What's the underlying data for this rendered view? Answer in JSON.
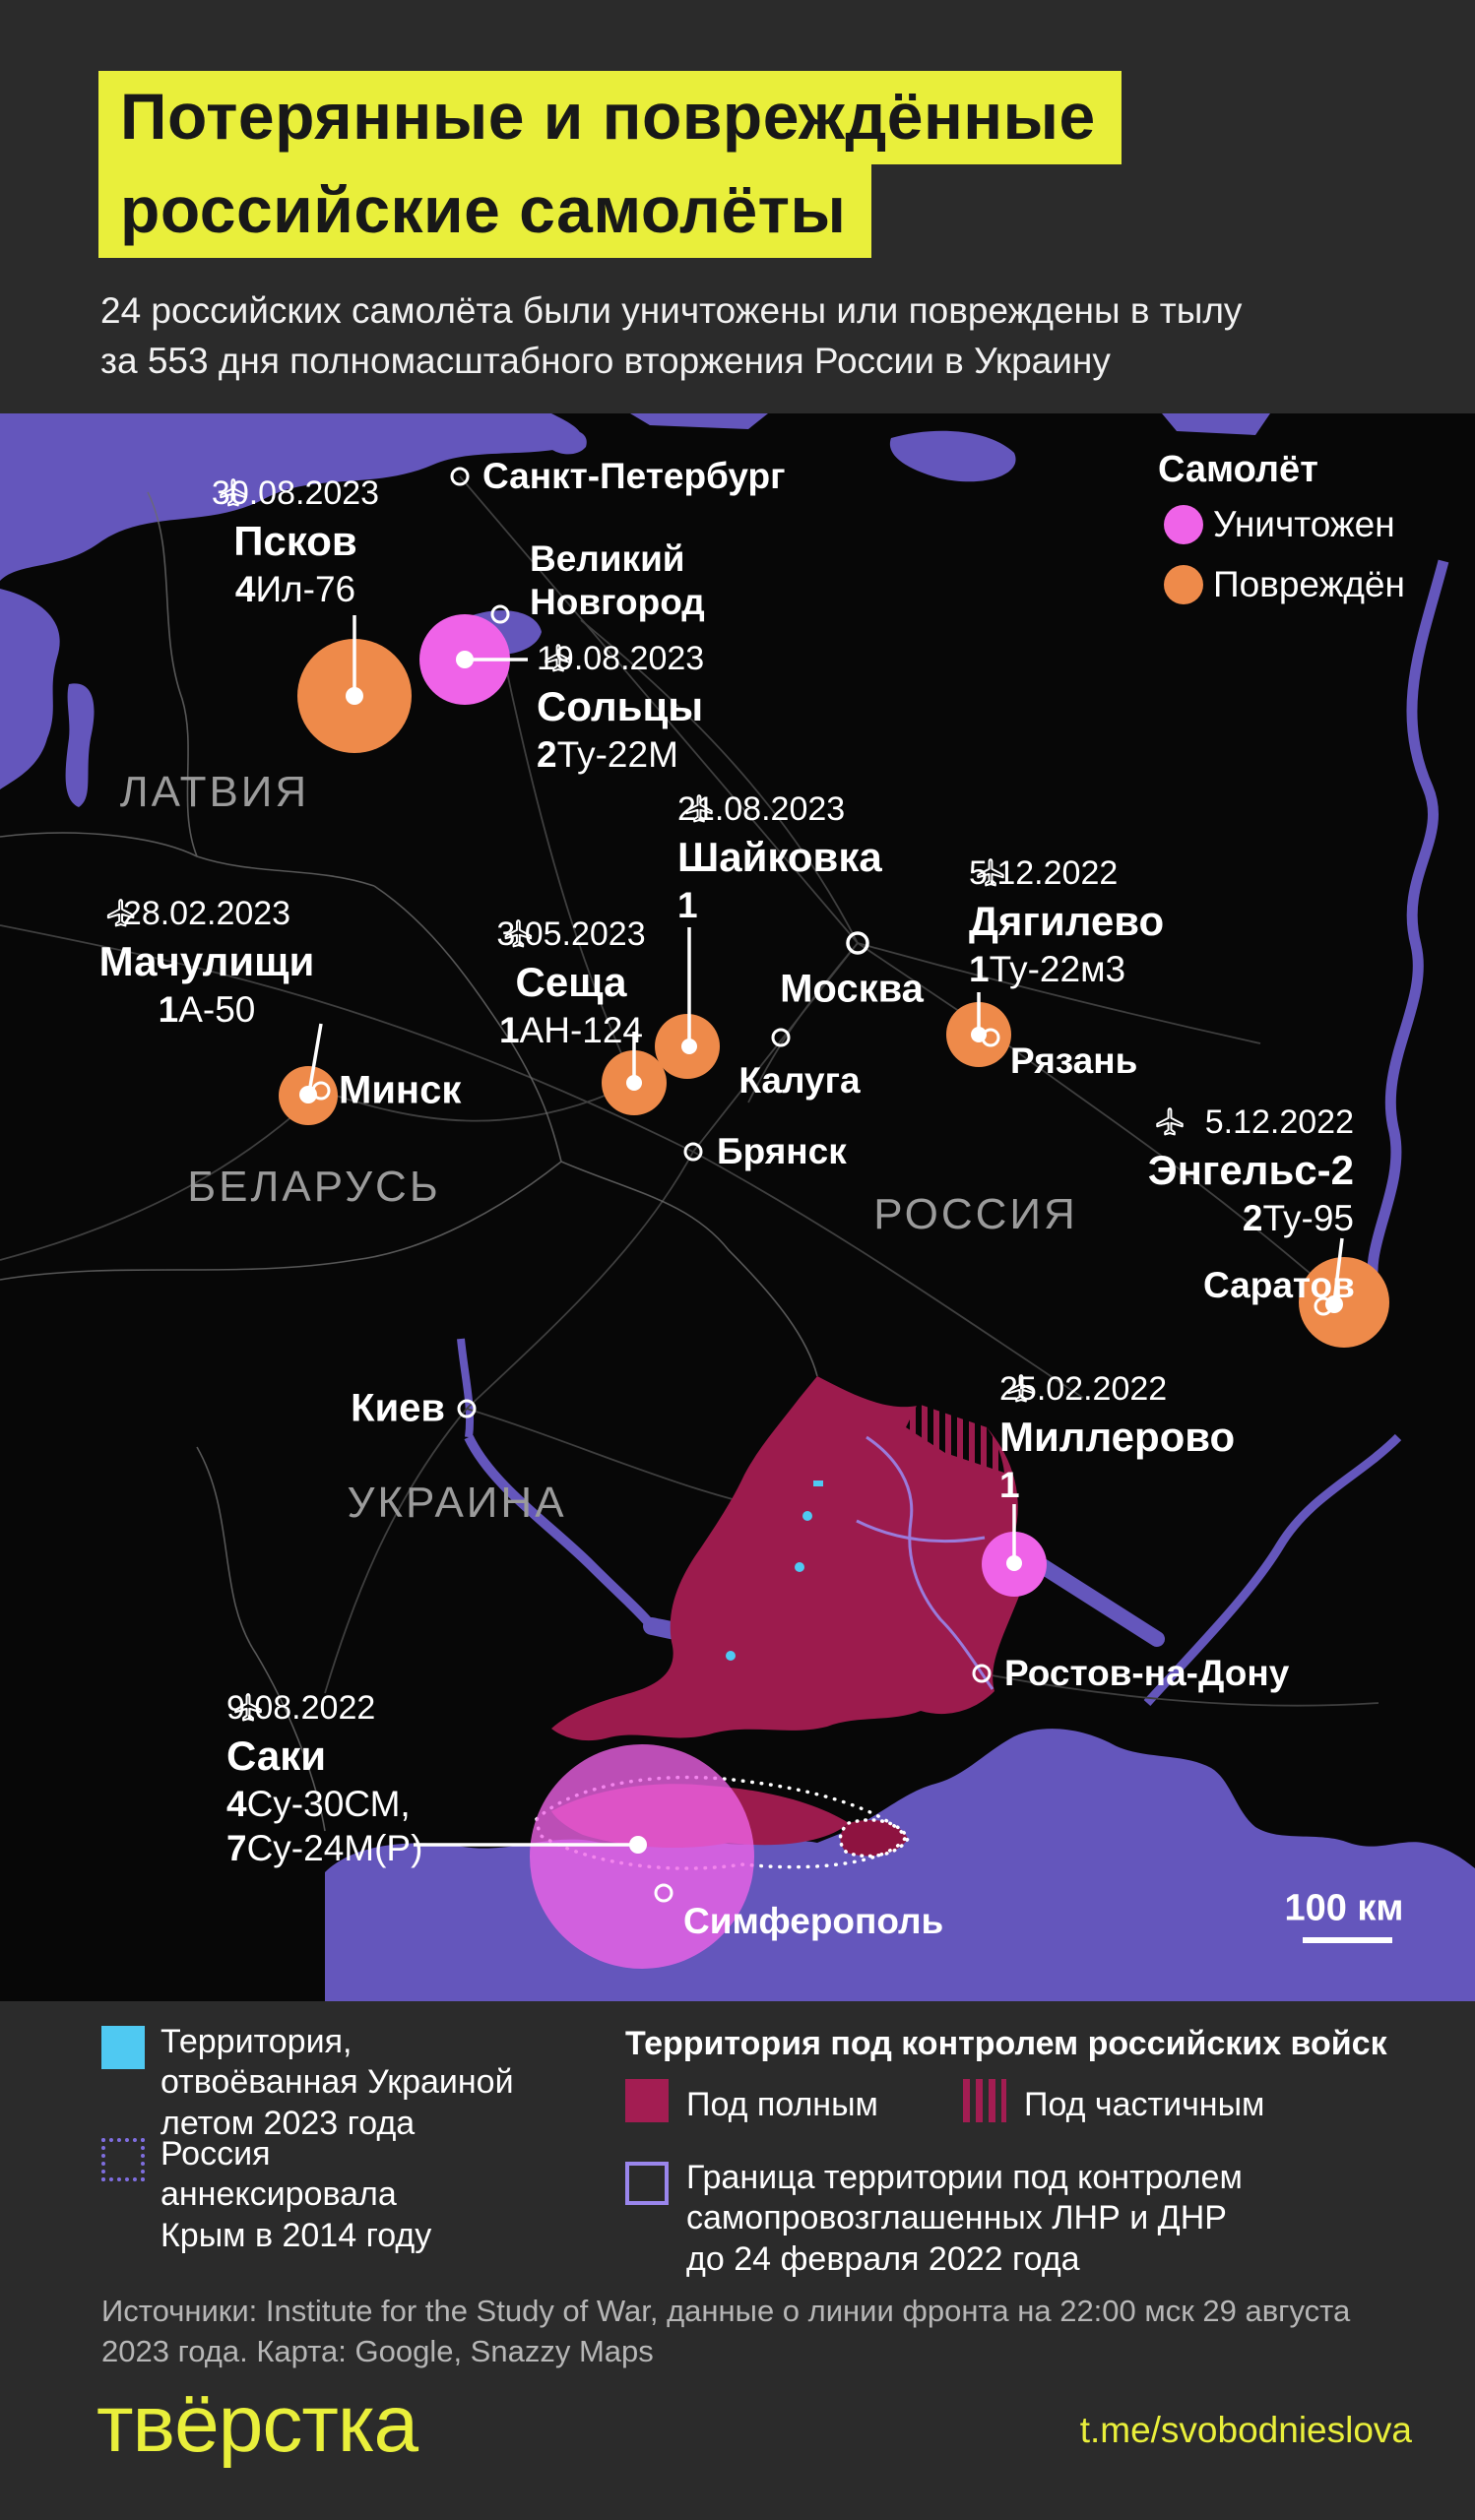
{
  "header": {
    "title_line1": "Потерянные и повреждённые",
    "title_line2": "российские самолёты",
    "subtitle": "24 российских самолёта были уничтожены или повреждены в тылу\nза 553 дня полномасштабного вторжения России в Украину"
  },
  "map_legend": {
    "title": "Самолёт",
    "items": [
      {
        "id": "destroyed",
        "label": "Уничтожен",
        "color": "#ef63e8"
      },
      {
        "id": "damaged",
        "label": "Повреждён",
        "color": "#ee8a4a"
      }
    ]
  },
  "events": [
    {
      "id": "pskov",
      "date": "30.08.2023",
      "place": "Псков",
      "status": "damaged",
      "aircraft": [
        {
          "count": "4",
          "type": "Ил-76"
        }
      ]
    },
    {
      "id": "soltsy",
      "date": "19.08.2023",
      "place": "Сольцы",
      "status": "destroyed",
      "aircraft": [
        {
          "count": "2",
          "type": "Ту-22М"
        }
      ]
    },
    {
      "id": "shaykovka",
      "date": "21.08.2023",
      "place": "Шайковка",
      "status": "damaged",
      "aircraft": [
        {
          "count": "1",
          "type": ""
        }
      ]
    },
    {
      "id": "seshcha",
      "date": "3.05.2023",
      "place": "Сеща",
      "status": "damaged",
      "aircraft": [
        {
          "count": "1",
          "type": "АН-124"
        }
      ]
    },
    {
      "id": "dyagilevo",
      "date": "5.12.2022",
      "place": "Дягилево",
      "status": "damaged",
      "aircraft": [
        {
          "count": "1",
          "type": "Ту-22м3"
        }
      ]
    },
    {
      "id": "machulishchi",
      "date": "28.02.2023",
      "place": "Мачулищи",
      "status": "damaged",
      "aircraft": [
        {
          "count": "1",
          "type": "А-50"
        }
      ]
    },
    {
      "id": "engels",
      "date": "5.12.2022",
      "place": "Энгельс-2",
      "status": "damaged",
      "aircraft": [
        {
          "count": "2",
          "type": "Ту-95"
        }
      ]
    },
    {
      "id": "millerovo",
      "date": "25.02.2022",
      "place": "Миллерово",
      "status": "destroyed",
      "aircraft": [
        {
          "count": "1",
          "type": ""
        }
      ]
    },
    {
      "id": "saki",
      "date": "9.08.2022",
      "place": "Саки",
      "status": "destroyed",
      "aircraft": [
        {
          "count": "4",
          "type": "Су-30СМ,"
        },
        {
          "count": "7",
          "type": "Су-24М(Р)"
        }
      ]
    }
  ],
  "cities": [
    {
      "id": "spb",
      "name": "Санкт-Петербург"
    },
    {
      "id": "vnovgorod",
      "name": "Великий\nНовгород"
    },
    {
      "id": "moscow",
      "name": "Москва"
    },
    {
      "id": "kaluga",
      "name": "Калуга"
    },
    {
      "id": "bryansk",
      "name": "Брянск"
    },
    {
      "id": "ryazan",
      "name": "Рязань"
    },
    {
      "id": "minsk",
      "name": "Минск"
    },
    {
      "id": "kyiv",
      "name": "Киев"
    },
    {
      "id": "rostov",
      "name": "Ростов-на-Дону"
    },
    {
      "id": "saratov",
      "name": "Саратов"
    },
    {
      "id": "simferopol",
      "name": "Симферополь"
    }
  ],
  "region_labels": [
    {
      "id": "latvia",
      "name": "ЛАТВИЯ"
    },
    {
      "id": "belarus",
      "name": "БЕЛАРУСЬ"
    },
    {
      "id": "russia",
      "name": "РОССИЯ"
    },
    {
      "id": "ukraine",
      "name": "УКРАИНА"
    }
  ],
  "scale": {
    "label": "100 км"
  },
  "bottom_legend": {
    "recaptured": "Территория,\nотвоёванная Украиной\nлетом 2023 года",
    "annexed": "Россия\nаннексировала\nКрым в 2014 году",
    "control_header": "Территория под контролем российских войск",
    "full_control": "Под полным",
    "partial_control": "Под частичным",
    "lnr_border": "Граница территории под контролем\nсамопровозглашенных ЛНР и ДНР\nдо 24 февраля 2022 года"
  },
  "sources": "Источники: Institute for the Study of War, данные о линии фронта на 22:00 мск 29 августа\n2023 года. Карта: Google, Snazzy Maps",
  "footer": {
    "logo": "твёрстка",
    "link": "t.me/svobodnieslova"
  },
  "colors": {
    "accent_yellow": "#e9ef3b",
    "destroyed": "#ef63e8",
    "damaged": "#ee8a4a",
    "water": "#6456bc",
    "full_control": "#9c1b4d",
    "recaptured": "#4fc9f2",
    "annexed_border": "#7f6ee0",
    "lnr_border": "#9a86ec"
  }
}
